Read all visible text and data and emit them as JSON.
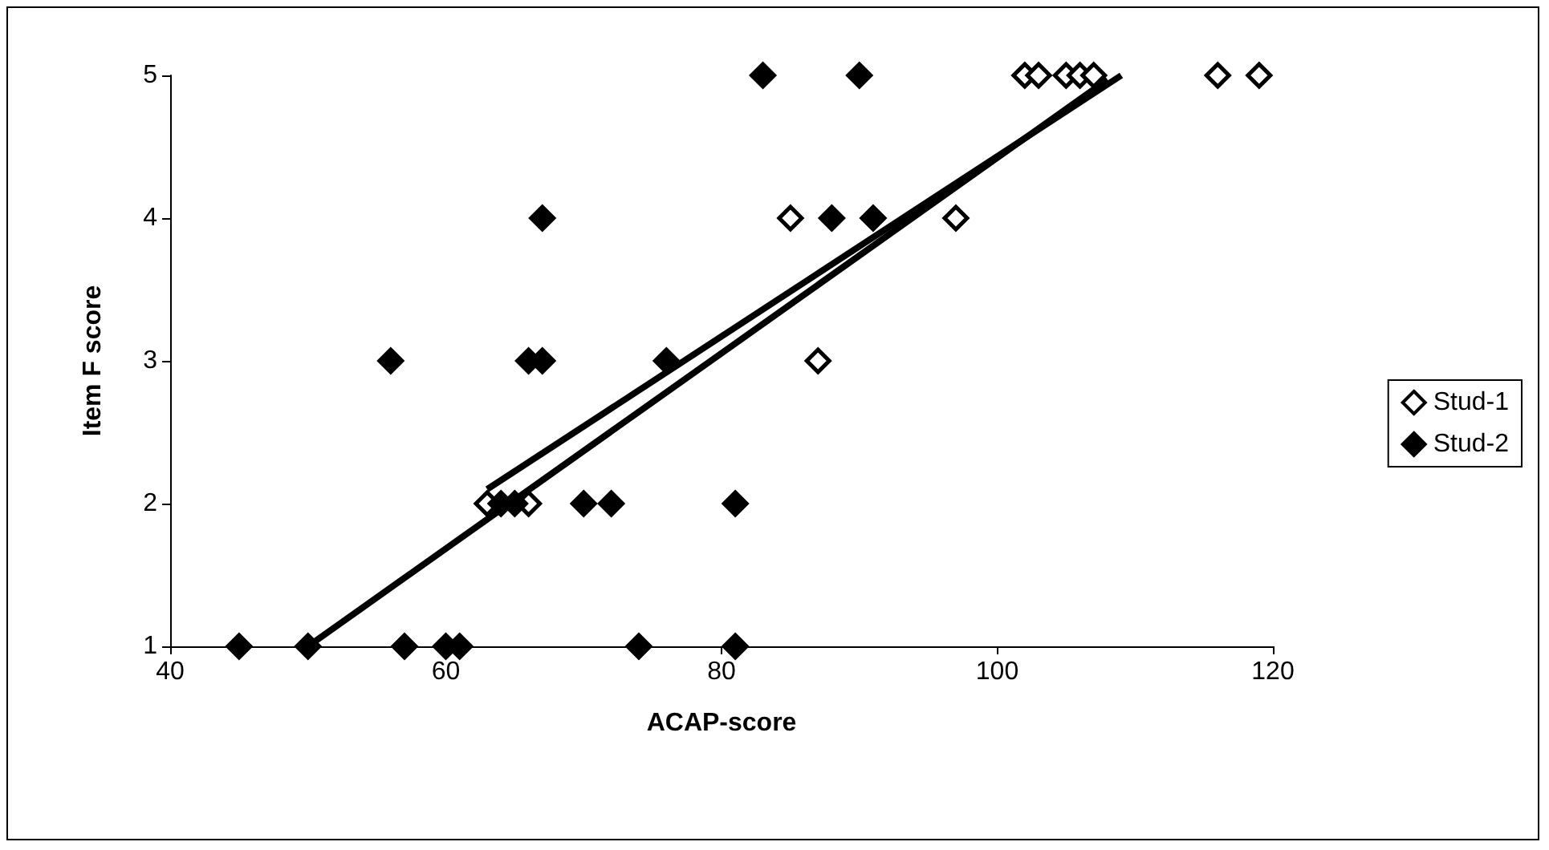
{
  "chart_data": {
    "type": "scatter",
    "xlabel": "ACAP-score",
    "ylabel": "Item F score",
    "xlim": [
      40,
      120
    ],
    "xticks": [
      40,
      60,
      80,
      100,
      120
    ],
    "ylim": [
      1,
      5
    ],
    "yticks": [
      1,
      2,
      3,
      4,
      5
    ],
    "grid": false,
    "legend": "right",
    "marker": "diamond",
    "series": [
      {
        "name": "Stud-1",
        "color": "#ffffff",
        "x": [
          63,
          66,
          87,
          85,
          97,
          102,
          103,
          105,
          106,
          107,
          116,
          119
        ],
        "values": [
          2,
          2,
          3,
          4,
          4,
          5,
          5,
          5,
          5,
          5,
          5,
          5
        ]
      },
      {
        "name": "Stud-2",
        "color": "#000000",
        "x": [
          45,
          50,
          57,
          60,
          61,
          74,
          81,
          64,
          65,
          70,
          72,
          81,
          56,
          66,
          67,
          76,
          67,
          88,
          91,
          83,
          90
        ],
        "values": [
          1,
          1,
          1,
          1,
          1,
          1,
          1,
          2,
          2,
          2,
          2,
          2,
          3,
          3,
          3,
          3,
          4,
          4,
          4,
          5,
          5
        ]
      },
      {
        "type": "line",
        "marker": "none",
        "color": "#000000",
        "x": [
          63,
          109
        ],
        "values": [
          2.1,
          5
        ]
      },
      {
        "type": "line",
        "marker": "none",
        "color": "#000000",
        "x": [
          50,
          108
        ],
        "values": [
          1,
          4.97
        ]
      }
    ]
  }
}
